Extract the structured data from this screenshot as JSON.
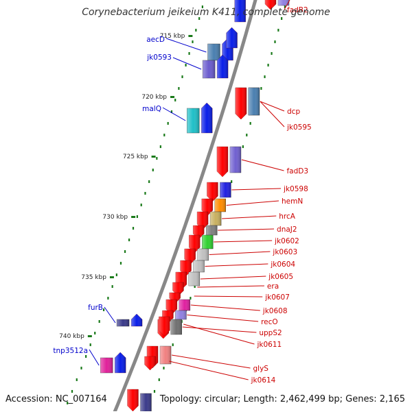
{
  "title": "Corynebacterium jeikeium K411, complete genome",
  "footer": {
    "accession": "Accession: NC_007164",
    "summary": "Topology: circular; Length: 2,462,499 bp; Genes: 2,165"
  },
  "colors": {
    "backbone": "#888888",
    "tick": "#1a7a1a",
    "forward_label": "#0000cc",
    "reverse_label": "#cc0000"
  },
  "scale": {
    "markers": [
      {
        "label": "715 kbp"
      },
      {
        "label": "720 kbp"
      },
      {
        "label": "725 kbp"
      },
      {
        "label": "730 kbp"
      },
      {
        "label": "735 kbp"
      },
      {
        "label": "740 kbp"
      }
    ]
  },
  "genes_forward": [
    {
      "name": "aecD",
      "color": "#4a7fb0"
    },
    {
      "name": "jk0593",
      "color": "#6a5acd"
    },
    {
      "name": "malQ",
      "color": "#20c0c8"
    },
    {
      "name": "furB",
      "color": "#3a3a8a"
    },
    {
      "name": "tnp3512a",
      "color": "#e0209a"
    }
  ],
  "genes_reverse": [
    {
      "name": "fadB2",
      "color": "#9080e0"
    },
    {
      "name": "dcp",
      "color": "#4a7fb0"
    },
    {
      "name": "jk0595",
      "color": "#4a7fb0"
    },
    {
      "name": "fadD3",
      "color": "#7060d0"
    },
    {
      "name": "jk0598",
      "color": "#2020e0"
    },
    {
      "name": "hemN",
      "color": "#ff8c00"
    },
    {
      "name": "hrcA",
      "color": "#c8b060"
    },
    {
      "name": "dnaJ2",
      "color": "#808080"
    },
    {
      "name": "jk0602",
      "color": "#30d030"
    },
    {
      "name": "jk0603",
      "color": "#c0c0c0"
    },
    {
      "name": "jk0604",
      "color": "#c0c0c0"
    },
    {
      "name": "jk0605",
      "color": "#c0c0c0"
    },
    {
      "name": "era",
      "color": "#ff0000"
    },
    {
      "name": "jk0607",
      "color": "#ff0000"
    },
    {
      "name": "jk0608",
      "color": "#e020a0"
    },
    {
      "name": "recO",
      "color": "#9080e0"
    },
    {
      "name": "uppS2",
      "color": "#707070"
    },
    {
      "name": "jk0611",
      "color": "#ff0000"
    },
    {
      "name": "glyS",
      "color": "#f08080"
    },
    {
      "name": "jk0614",
      "color": "#ff0000"
    }
  ]
}
